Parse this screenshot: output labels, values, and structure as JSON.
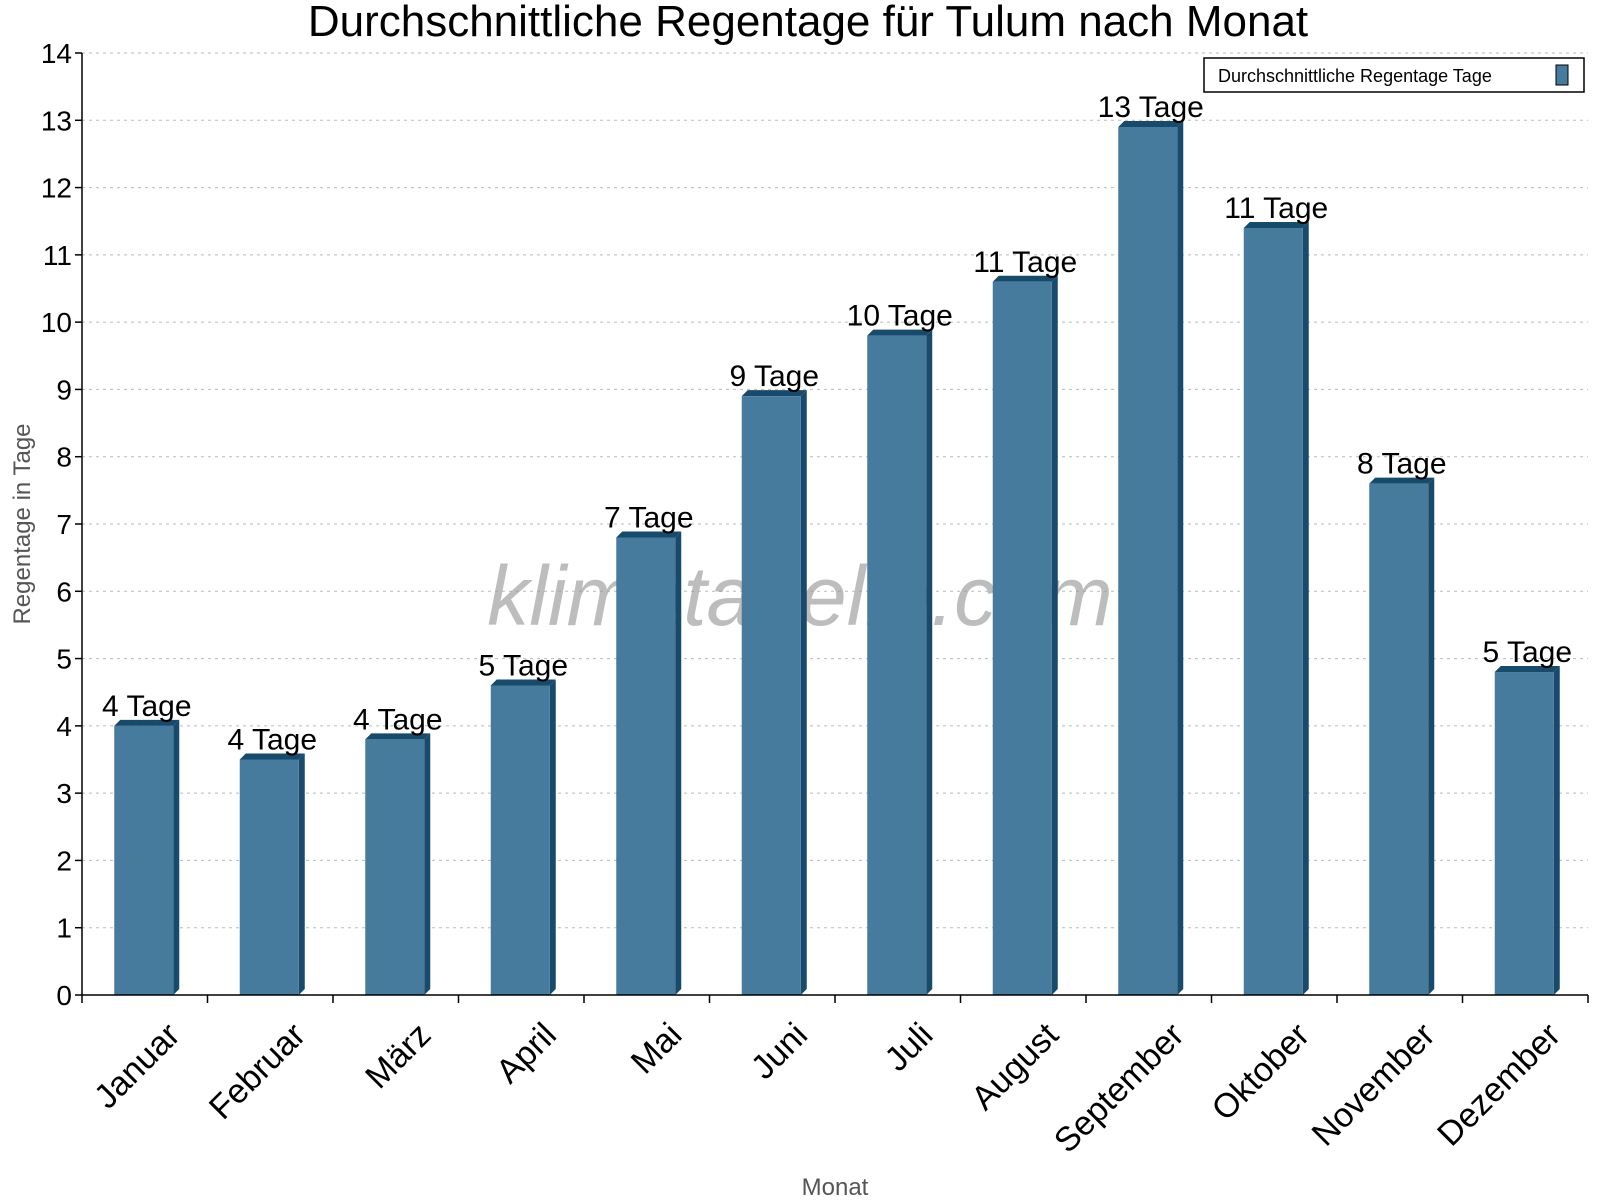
{
  "chart_data": {
    "type": "bar",
    "title": "Durchschnittliche Regentage für Tulum nach Monat",
    "xlabel": "Monat",
    "ylabel": "Regentage in Tage",
    "ylim": [
      0,
      14
    ],
    "yticks": [
      0,
      1,
      2,
      3,
      4,
      5,
      6,
      7,
      8,
      9,
      10,
      11,
      12,
      13,
      14
    ],
    "grid": true,
    "legend_position": "top-right",
    "categories": [
      "Januar",
      "Februar",
      "März",
      "April",
      "Mai",
      "Juni",
      "Juli",
      "August",
      "September",
      "Oktober",
      "November",
      "Dezember"
    ],
    "series": [
      {
        "name": "Durchschnittliche Regentage Tage",
        "values": [
          4.0,
          3.5,
          3.8,
          4.6,
          6.8,
          8.9,
          9.8,
          10.6,
          12.9,
          11.4,
          7.6,
          4.8
        ],
        "labels": [
          "4 Tage",
          "4 Tage",
          "4 Tage",
          "5 Tage",
          "7 Tage",
          "9 Tage",
          "10 Tage",
          "11 Tage",
          "13 Tage",
          "11 Tage",
          "8 Tage",
          "5 Tage"
        ],
        "color": "#467b9d",
        "side_color": "#174a6b"
      }
    ],
    "watermark": "klimatabelle.com"
  }
}
